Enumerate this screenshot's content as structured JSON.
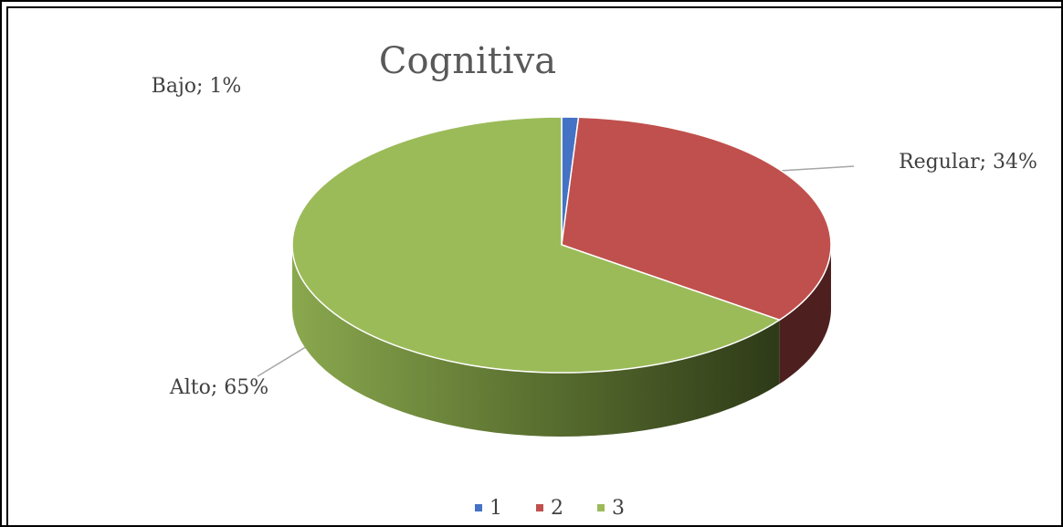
{
  "chart_data": {
    "type": "pie",
    "title": "Cognitiva",
    "categories": [
      "Bajo",
      "Regular",
      "Alto"
    ],
    "values": [
      1,
      34,
      65
    ],
    "value_labels": [
      "Bajo;  1%",
      "Regular;  34%",
      "Alto;  65%"
    ],
    "colors": [
      "#4472c4",
      "#c0504d",
      "#9bbb59"
    ],
    "legend": [
      "1",
      "2",
      "3"
    ],
    "legend_position": "bottom"
  }
}
